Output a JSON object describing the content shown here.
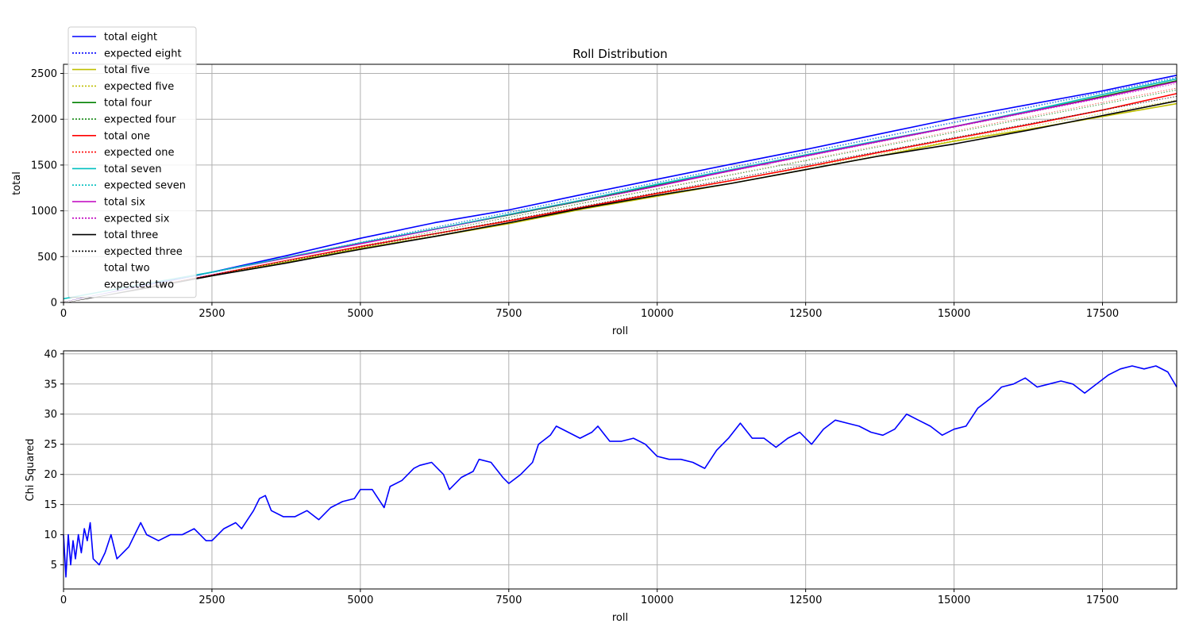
{
  "chart_data": [
    {
      "type": "line",
      "title": "Roll Distribution",
      "xlabel": "roll",
      "ylabel": "total",
      "xlim": [
        0,
        18750
      ],
      "ylim": [
        0,
        2600
      ],
      "xticks": [
        0,
        2500,
        5000,
        7500,
        10000,
        12500,
        15000,
        17500
      ],
      "yticks": [
        0,
        500,
        1000,
        1500,
        2000,
        2500
      ],
      "grid": true,
      "legend_position": "top-left",
      "series": [
        {
          "name": "total eight",
          "color": "#0000ff",
          "style": "solid",
          "x": [
            0,
            1250,
            2500,
            3750,
            5000,
            6250,
            7500,
            8750,
            10000,
            11250,
            12500,
            13750,
            15000,
            16250,
            17500,
            18750
          ],
          "y": [
            0,
            170,
            330,
            510,
            700,
            870,
            1010,
            1180,
            1345,
            1510,
            1670,
            1840,
            2010,
            2160,
            2310,
            2480
          ]
        },
        {
          "name": "expected eight",
          "color": "#0000ff",
          "style": "dotted",
          "x": [
            0,
            18750
          ],
          "y": [
            0,
            2460
          ]
        },
        {
          "name": "total five",
          "color": "#bfbf00",
          "style": "solid",
          "x": [
            0,
            1250,
            2500,
            3750,
            5000,
            6250,
            7500,
            8750,
            10000,
            11250,
            12500,
            13750,
            15000,
            16250,
            17500,
            18750
          ],
          "y": [
            0,
            150,
            290,
            440,
            590,
            720,
            860,
            1020,
            1160,
            1300,
            1450,
            1600,
            1760,
            1890,
            2030,
            2170
          ]
        },
        {
          "name": "expected five",
          "color": "#bfbf00",
          "style": "dotted",
          "x": [
            0,
            18750
          ],
          "y": [
            0,
            2210
          ]
        },
        {
          "name": "total four",
          "color": "#008000",
          "style": "solid",
          "x": [
            0,
            1250,
            2500,
            3750,
            5000,
            6250,
            7500,
            8750,
            10000,
            11250,
            12500,
            13750,
            15000,
            16250,
            17500,
            18750
          ],
          "y": [
            0,
            160,
            310,
            470,
            640,
            800,
            950,
            1110,
            1280,
            1440,
            1610,
            1760,
            1920,
            2080,
            2250,
            2420
          ]
        },
        {
          "name": "expected four",
          "color": "#008000",
          "style": "dotted",
          "x": [
            0,
            18750
          ],
          "y": [
            0,
            2320
          ]
        },
        {
          "name": "total one",
          "color": "#ff0000",
          "style": "solid",
          "x": [
            0,
            1250,
            2500,
            3750,
            5000,
            6250,
            7500,
            8750,
            10000,
            11250,
            12500,
            13750,
            15000,
            16250,
            17500,
            18750
          ],
          "y": [
            0,
            150,
            300,
            460,
            610,
            750,
            890,
            1040,
            1190,
            1330,
            1480,
            1640,
            1790,
            1940,
            2100,
            2280
          ]
        },
        {
          "name": "expected one",
          "color": "#ff0000",
          "style": "dotted",
          "x": [
            0,
            18750
          ],
          "y": [
            0,
            2340
          ]
        },
        {
          "name": "total seven",
          "color": "#00bfbf",
          "style": "solid",
          "x": [
            0,
            1250,
            2500,
            3750,
            5000,
            6250,
            7500,
            8750,
            10000,
            11250,
            12500,
            13750,
            15000,
            16250,
            17500,
            18750
          ],
          "y": [
            40,
            190,
            330,
            490,
            650,
            800,
            960,
            1120,
            1290,
            1450,
            1610,
            1770,
            1920,
            2090,
            2270,
            2440
          ]
        },
        {
          "name": "expected seven",
          "color": "#00bfbf",
          "style": "dotted",
          "x": [
            0,
            18750
          ],
          "y": [
            0,
            2450
          ]
        },
        {
          "name": "total six",
          "color": "#bf00bf",
          "style": "solid",
          "x": [
            0,
            1250,
            2500,
            3750,
            5000,
            6250,
            7500,
            8750,
            10000,
            11250,
            12500,
            13750,
            15000,
            16250,
            17500,
            18750
          ],
          "y": [
            0,
            160,
            310,
            480,
            640,
            790,
            940,
            1100,
            1270,
            1440,
            1600,
            1760,
            1920,
            2080,
            2240,
            2410
          ]
        },
        {
          "name": "expected six",
          "color": "#bf00bf",
          "style": "dotted",
          "x": [
            0,
            18750
          ],
          "y": [
            0,
            2390
          ]
        },
        {
          "name": "total three",
          "color": "#000000",
          "style": "solid",
          "x": [
            0,
            1250,
            2500,
            3750,
            5000,
            6250,
            7500,
            8750,
            10000,
            11250,
            12500,
            13750,
            15000,
            16250,
            17500,
            18750
          ],
          "y": [
            0,
            140,
            290,
            430,
            580,
            720,
            870,
            1030,
            1170,
            1300,
            1450,
            1600,
            1730,
            1880,
            2040,
            2200
          ]
        },
        {
          "name": "expected three",
          "color": "#000000",
          "style": "dotted",
          "x": [
            0,
            18750
          ],
          "y": [
            0,
            2250
          ]
        },
        {
          "name": "total two",
          "color": "#ffffff",
          "style": "solid",
          "x": [
            0,
            18750
          ],
          "y": [
            0,
            2350
          ]
        },
        {
          "name": "expected two",
          "color": "#ffffff",
          "style": "dotted",
          "x": [
            0,
            18750
          ],
          "y": [
            0,
            2360
          ]
        }
      ]
    },
    {
      "type": "line",
      "title": "",
      "xlabel": "roll",
      "ylabel": "Chi Squared",
      "xlim": [
        0,
        18750
      ],
      "ylim": [
        1,
        40.5
      ],
      "xticks": [
        0,
        2500,
        5000,
        7500,
        10000,
        12500,
        15000,
        17500
      ],
      "yticks": [
        5,
        10,
        15,
        20,
        25,
        30,
        35,
        40
      ],
      "grid": true,
      "series": [
        {
          "color": "#0000ff",
          "style": "solid",
          "x": [
            0,
            40,
            80,
            120,
            160,
            200,
            250,
            300,
            350,
            400,
            450,
            500,
            600,
            700,
            800,
            900,
            1000,
            1100,
            1200,
            1300,
            1400,
            1600,
            1800,
            2000,
            2200,
            2400,
            2500,
            2700,
            2900,
            3000,
            3200,
            3300,
            3400,
            3500,
            3700,
            3900,
            4100,
            4300,
            4500,
            4700,
            4900,
            5000,
            5200,
            5400,
            5500,
            5700,
            5900,
            6000,
            6200,
            6400,
            6500,
            6700,
            6900,
            7000,
            7200,
            7400,
            7500,
            7700,
            7900,
            8000,
            8200,
            8300,
            8500,
            8700,
            8900,
            9000,
            9200,
            9400,
            9600,
            9800,
            10000,
            10200,
            10400,
            10600,
            10800,
            11000,
            11200,
            11400,
            11600,
            11800,
            12000,
            12200,
            12400,
            12600,
            12800,
            13000,
            13200,
            13400,
            13600,
            13800,
            14000,
            14200,
            14400,
            14600,
            14800,
            15000,
            15200,
            15400,
            15600,
            15800,
            16000,
            16200,
            16400,
            16600,
            16800,
            17000,
            17200,
            17400,
            17600,
            17800,
            18000,
            18200,
            18400,
            18600,
            18750
          ],
          "y": [
            10,
            3,
            10,
            5,
            9,
            6,
            10,
            7,
            11,
            9,
            12,
            6,
            5,
            7,
            10,
            6,
            7,
            8,
            10,
            12,
            10,
            9,
            10,
            10,
            11,
            9,
            9,
            11,
            12,
            11,
            14,
            16,
            16.5,
            14,
            13,
            13,
            14,
            12.5,
            14.5,
            15.5,
            16,
            17.5,
            17.5,
            14.5,
            18,
            19,
            21,
            21.5,
            22,
            20,
            17.5,
            19.5,
            20.5,
            22.5,
            22,
            19.5,
            18.5,
            20,
            22,
            25,
            26.5,
            28,
            27,
            26,
            27,
            28,
            25.5,
            25.5,
            26,
            25,
            23,
            22.5,
            22.5,
            22,
            21,
            24,
            26,
            28.5,
            26,
            26,
            24.5,
            26,
            27,
            25,
            27.5,
            29,
            28.5,
            28,
            27,
            26.5,
            27.5,
            30,
            29,
            28,
            26.5,
            27.5,
            28,
            31,
            32.5,
            34.5,
            35,
            36,
            34.5,
            35,
            35.5,
            35,
            33.5,
            35,
            36.5,
            37.5,
            38,
            37.5,
            38,
            37,
            34.5
          ]
        }
      ]
    }
  ]
}
